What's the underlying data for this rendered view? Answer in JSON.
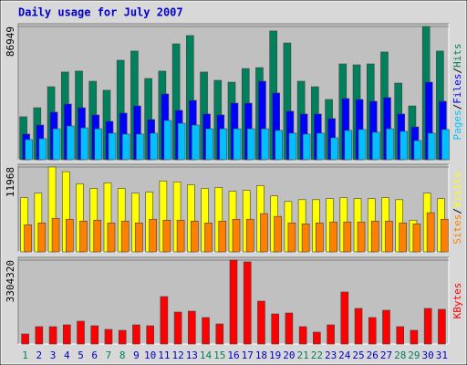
{
  "chart_data": [
    {
      "type": "bar",
      "title": "Daily usage for July 2007",
      "ylim": [
        0,
        86949
      ],
      "yticks": [
        86949
      ],
      "series": [
        {
          "name": "Hits",
          "color": "#00805c",
          "values": [
            28000,
            33900,
            47600,
            57200,
            57800,
            51200,
            45300,
            64900,
            70900,
            53000,
            57800,
            75600,
            81000,
            57200,
            51800,
            50600,
            59500,
            60100,
            84000,
            76200,
            51200,
            47600,
            39300,
            62500,
            61900,
            62500,
            70300,
            50000,
            35100,
            86949,
            70900
          ]
        },
        {
          "name": "Files",
          "color": "#0000ff",
          "values": [
            16700,
            22600,
            31000,
            36300,
            33900,
            29200,
            25000,
            30400,
            35100,
            26200,
            42900,
            32200,
            38700,
            29800,
            29200,
            36900,
            36900,
            51200,
            43500,
            31600,
            29800,
            29800,
            26800,
            39900,
            39300,
            38100,
            40500,
            29800,
            21400,
            50600,
            38100
          ]
        },
        {
          "name": "Pages",
          "color": "#00c0ff",
          "values": [
            13100,
            13700,
            20200,
            22000,
            20800,
            20200,
            17300,
            16700,
            16700,
            17300,
            25600,
            23800,
            22600,
            20200,
            20200,
            20200,
            20200,
            20200,
            19100,
            17300,
            16700,
            17300,
            14300,
            19100,
            19700,
            17900,
            20200,
            18500,
            12500,
            17300,
            19700
          ]
        }
      ]
    },
    {
      "type": "bar",
      "ylim": [
        0,
        11968
      ],
      "yticks": [
        11968
      ],
      "series": [
        {
          "name": "Visits",
          "color": "#ffff00",
          "values": [
            7630,
            8280,
            11968,
            11310,
            9600,
            8940,
            9730,
            8940,
            8280,
            8420,
            9990,
            9860,
            9470,
            8940,
            9070,
            8550,
            8680,
            9340,
            7890,
            7100,
            7360,
            7360,
            7500,
            7630,
            7500,
            7500,
            7630,
            7360,
            4470,
            8280,
            7500
          ]
        },
        {
          "name": "Sites",
          "color": "#ff8000",
          "values": [
            3810,
            4080,
            4730,
            4600,
            4340,
            4470,
            4080,
            4340,
            4080,
            4600,
            4470,
            4470,
            4340,
            4080,
            4340,
            4600,
            4600,
            5390,
            5000,
            4080,
            3950,
            4080,
            4210,
            4210,
            4210,
            4340,
            4340,
            4080,
            3950,
            5520,
            4600
          ]
        }
      ]
    },
    {
      "type": "bar",
      "ylim": [
        0,
        3304320
      ],
      "yticks": [
        3304320
      ],
      "categories": [
        "1",
        "2",
        "3",
        "4",
        "5",
        "6",
        "7",
        "8",
        "9",
        "10",
        "11",
        "12",
        "13",
        "14",
        "15",
        "16",
        "17",
        "18",
        "19",
        "20",
        "21",
        "22",
        "23",
        "24",
        "25",
        "26",
        "27",
        "28",
        "29",
        "30",
        "31"
      ],
      "category_colors": [
        "#00805c",
        "#0000cc",
        "#0000cc",
        "#0000cc",
        "#0000cc",
        "#0000cc",
        "#00805c",
        "#00805c",
        "#0000cc",
        "#0000cc",
        "#0000cc",
        "#0000cc",
        "#0000cc",
        "#00805c",
        "#00805c",
        "#0000cc",
        "#0000cc",
        "#0000cc",
        "#0000cc",
        "#0000cc",
        "#00805c",
        "#00805c",
        "#0000cc",
        "#0000cc",
        "#0000cc",
        "#0000cc",
        "#0000cc",
        "#00805c",
        "#00805c",
        "#0000cc",
        "#0000cc"
      ],
      "series": [
        {
          "name": "KBytes",
          "color": "#ff0000",
          "values": [
            395100,
            682400,
            682400,
            754300,
            897900,
            718300,
            574700,
            538800,
            754300,
            718300,
            1867700,
            1257100,
            1293000,
            1041600,
            790200,
            3304320,
            3232500,
            1688100,
            1185300,
            1221200,
            682400,
            466900,
            754300,
            2047300,
            1400800,
            1041600,
            1328900,
            682400,
            538800,
            1400800,
            1364800
          ]
        }
      ]
    }
  ]
}
